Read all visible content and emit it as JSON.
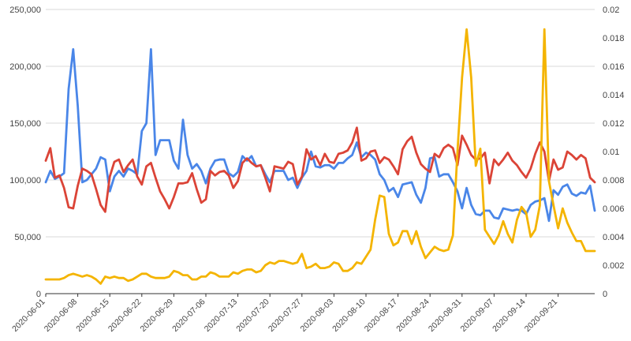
{
  "chart_data": {
    "type": "line",
    "title": "",
    "xlabel": "",
    "ylabel": "",
    "x_start": "2020-06-01",
    "x_tick_labels": [
      "2020-06-01",
      "2020-06-08",
      "2020-06-15",
      "2020-06-22",
      "2020-06-29",
      "2020-07-06",
      "2020-07-13",
      "2020-07-20",
      "2020-07-27",
      "2020-08-03",
      "2020-08-10",
      "2020-08-17",
      "2020-08-24",
      "2020-08-31",
      "2020-09-07",
      "2020-09-14",
      "2020-09-21"
    ],
    "left_axis": {
      "ylim": [
        0,
        250000
      ],
      "tick_labels": [
        "0",
        "50,000",
        "100,000",
        "150,000",
        "200,000",
        "250,000"
      ],
      "tick_values": [
        0,
        50000,
        100000,
        150000,
        200000,
        250000
      ]
    },
    "right_axis": {
      "ylim": [
        0,
        0.02
      ],
      "tick_labels": [
        "0",
        "0.002",
        "0.004",
        "0.006",
        "0.008",
        "0.01",
        "0.012",
        "0.014",
        "0.016",
        "0.018",
        "0.02"
      ],
      "tick_values": [
        0,
        0.002,
        0.004,
        0.006,
        0.008,
        0.01,
        0.012,
        0.014,
        0.016,
        0.018,
        0.02
      ]
    },
    "grid": true,
    "legend": "none",
    "series": [
      {
        "axis": "left",
        "color": "#4a86e8",
        "values": [
          98000,
          108000,
          101000,
          103000,
          106000,
          180000,
          215000,
          165000,
          98000,
          100000,
          105000,
          110000,
          120000,
          118000,
          90000,
          103000,
          108000,
          103000,
          110000,
          108000,
          105000,
          143000,
          150000,
          215000,
          122000,
          135000,
          135000,
          135000,
          117000,
          110000,
          153000,
          122000,
          110000,
          114000,
          108000,
          97000,
          110000,
          117000,
          118000,
          118000,
          106000,
          103000,
          107000,
          121000,
          117000,
          121000,
          112000,
          113000,
          105000,
          98000,
          108000,
          108000,
          108000,
          100000,
          102000,
          93000,
          102000,
          108000,
          125000,
          112000,
          111000,
          113000,
          113000,
          110000,
          115000,
          115000,
          119000,
          122000,
          133000,
          120000,
          124000,
          122000,
          118000,
          105000,
          100000,
          90000,
          93000,
          85000,
          96000,
          97000,
          98000,
          87000,
          80000,
          93000,
          119000,
          120000,
          103000,
          105000,
          105000,
          98000,
          90000,
          75000,
          93000,
          78000,
          70000,
          69000,
          73000,
          73000,
          67000,
          66000,
          75000,
          74000,
          73000,
          74000,
          73000,
          70000,
          78000,
          81000,
          82000,
          84000,
          64000,
          91000,
          87000,
          94000,
          96000,
          88000,
          86000,
          89000,
          88000,
          95000,
          73000
        ]
      },
      {
        "axis": "left",
        "color": "#db4437",
        "values": [
          117000,
          128000,
          102000,
          104000,
          93000,
          76000,
          75000,
          95000,
          110000,
          108000,
          105000,
          92000,
          78000,
          72000,
          103000,
          116000,
          118000,
          107000,
          113000,
          118000,
          103000,
          96000,
          112000,
          115000,
          102000,
          90000,
          83000,
          75000,
          85000,
          97000,
          97000,
          98000,
          106000,
          92000,
          80000,
          83000,
          108000,
          104000,
          107000,
          108000,
          104000,
          93000,
          99000,
          115000,
          119000,
          115000,
          112000,
          113000,
          102000,
          90000,
          112000,
          111000,
          110000,
          116000,
          114000,
          96000,
          103000,
          127000,
          118000,
          121000,
          113000,
          123000,
          116000,
          115000,
          123000,
          124000,
          126000,
          133000,
          146000,
          117000,
          119000,
          125000,
          126000,
          115000,
          120000,
          118000,
          112000,
          105000,
          127000,
          134000,
          138000,
          124000,
          114000,
          110000,
          107000,
          123000,
          120000,
          128000,
          131000,
          128000,
          113000,
          139000,
          131000,
          122000,
          118000,
          119000,
          124000,
          97000,
          118000,
          113000,
          118000,
          124000,
          117000,
          113000,
          107000,
          102000,
          110000,
          123000,
          133000,
          125000,
          99000,
          118000,
          109000,
          111000,
          125000,
          122000,
          118000,
          122000,
          119000,
          102000,
          98000
        ]
      },
      {
        "axis": "right",
        "color": "#f4b400",
        "values": [
          0.001,
          0.001,
          0.001,
          0.001,
          0.0011,
          0.0013,
          0.0014,
          0.0013,
          0.0012,
          0.0013,
          0.0012,
          0.001,
          0.0007,
          0.0012,
          0.0011,
          0.0012,
          0.0011,
          0.0011,
          0.0009,
          0.001,
          0.0012,
          0.0014,
          0.0014,
          0.0012,
          0.0011,
          0.0011,
          0.0011,
          0.0012,
          0.0016,
          0.0015,
          0.0013,
          0.0013,
          0.001,
          0.001,
          0.0012,
          0.0012,
          0.0015,
          0.0014,
          0.0012,
          0.0012,
          0.0012,
          0.0015,
          0.0014,
          0.0016,
          0.0017,
          0.0017,
          0.0015,
          0.0016,
          0.002,
          0.0022,
          0.0021,
          0.0023,
          0.0023,
          0.0022,
          0.0021,
          0.0022,
          0.0028,
          0.0018,
          0.0019,
          0.0021,
          0.0018,
          0.0018,
          0.0019,
          0.0022,
          0.0021,
          0.0016,
          0.0016,
          0.0018,
          0.0022,
          0.0021,
          0.0026,
          0.0031,
          0.0052,
          0.0069,
          0.0068,
          0.0042,
          0.0034,
          0.0036,
          0.0044,
          0.0044,
          0.0035,
          0.0044,
          0.0033,
          0.0025,
          0.0029,
          0.0033,
          0.0031,
          0.003,
          0.0031,
          0.0041,
          0.01,
          0.0152,
          0.0186,
          0.0152,
          0.009,
          0.0102,
          0.0045,
          0.004,
          0.0035,
          0.0041,
          0.0051,
          0.0042,
          0.0036,
          0.0052,
          0.0061,
          0.0057,
          0.004,
          0.0045,
          0.0062,
          0.0186,
          0.0079,
          0.0062,
          0.0046,
          0.006,
          0.005,
          0.0043,
          0.0037,
          0.0037,
          0.003,
          0.003,
          0.003
        ]
      }
    ]
  }
}
